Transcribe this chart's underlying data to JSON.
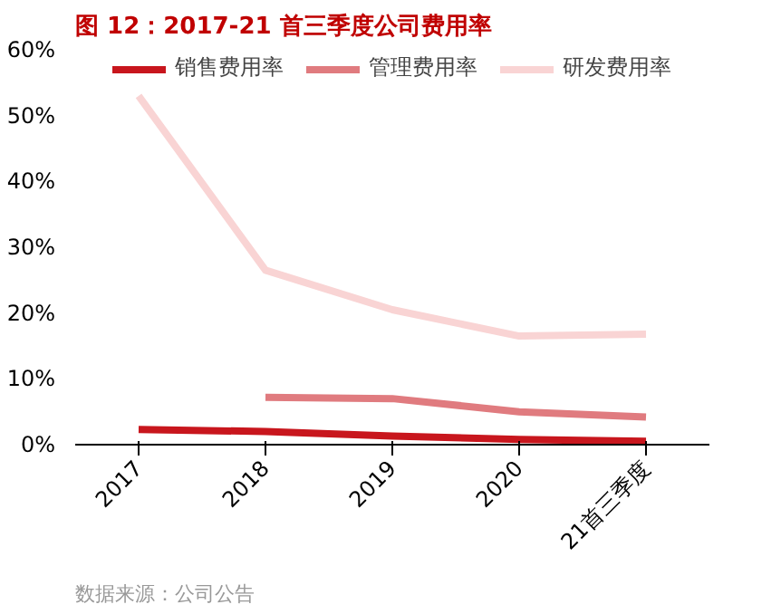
{
  "chart_data": {
    "type": "line",
    "title": "图 12：2017-21 首三季度公司费用率",
    "categories": [
      "2017",
      "2018",
      "2019",
      "2020",
      "21首三季度"
    ],
    "series": [
      {
        "name": "销售费用率",
        "color": "#c8161d",
        "values": [
          2.3,
          2.0,
          1.3,
          0.8,
          0.5
        ]
      },
      {
        "name": "管理费用率",
        "color": "#e07b7f",
        "values": [
          null,
          7.2,
          7.0,
          5.0,
          4.2
        ]
      },
      {
        "name": "研发费用率",
        "color": "#f9d4d4",
        "values": [
          53,
          26.5,
          20.5,
          16.5,
          16.8
        ]
      }
    ],
    "ylim": [
      0,
      60
    ],
    "yticks": [
      {
        "value": 0,
        "label": "0%"
      },
      {
        "value": 10,
        "label": "10%"
      },
      {
        "value": 20,
        "label": "20%"
      },
      {
        "value": 30,
        "label": "30%"
      },
      {
        "value": 40,
        "label": "40%"
      },
      {
        "value": 50,
        "label": "50%"
      },
      {
        "value": 60,
        "label": "60%"
      }
    ],
    "grid": false,
    "legend": "top",
    "marker": "none",
    "line_style": "solid",
    "annotations": [
      "数据来源：公司公告"
    ]
  }
}
